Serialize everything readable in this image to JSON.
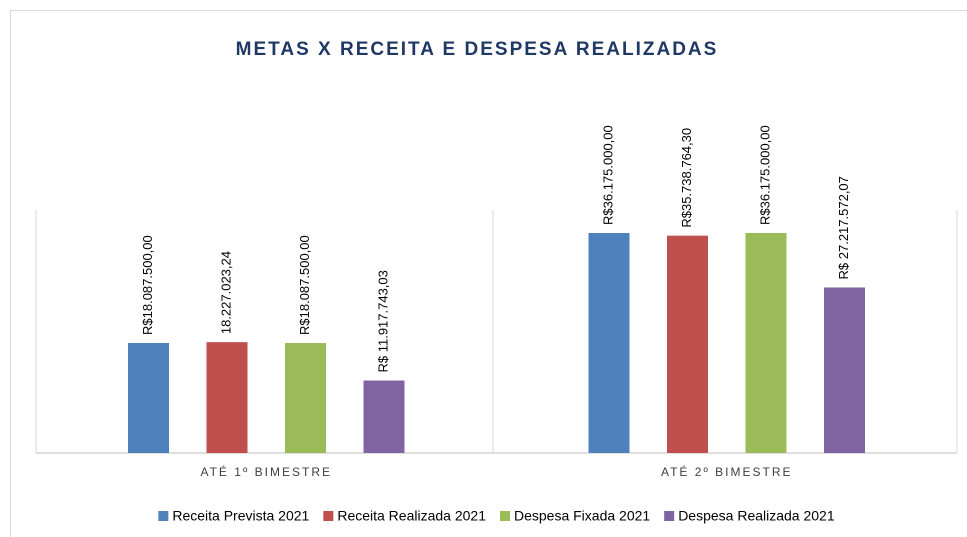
{
  "chart_data": {
    "type": "bar",
    "title": "METAS X RECEITA E DESPESA REALIZADAS",
    "categories": [
      "ATÉ 1º BIMESTRE",
      "ATÉ 2º BIMESTRE"
    ],
    "series": [
      {
        "name": "Receita Prevista 2021",
        "color": "#4f81bd",
        "values": [
          18087500,
          36175000
        ],
        "value_labels": [
          "R$18.087.500,00",
          "R$36.175.000,00"
        ]
      },
      {
        "name": "Receita Realizada 2021",
        "color": "#c0504d",
        "values": [
          18227023.24,
          35738764.3
        ],
        "value_labels": [
          "18.227.023,24",
          "R$35.738.764,30"
        ]
      },
      {
        "name": "Despesa Fixada 2021",
        "color": "#9bbb59",
        "values": [
          18087500,
          36175000
        ],
        "value_labels": [
          "R$18.087.500,00",
          "R$36.175.000,00"
        ]
      },
      {
        "name": "Despesa Realizada 2021",
        "color": "#8064a2",
        "values": [
          11917743.03,
          27217572.07
        ],
        "value_labels": [
          "R$ 11.917.743,03",
          "R$ 27.217.572,07"
        ]
      }
    ],
    "legend": "bottom"
  }
}
